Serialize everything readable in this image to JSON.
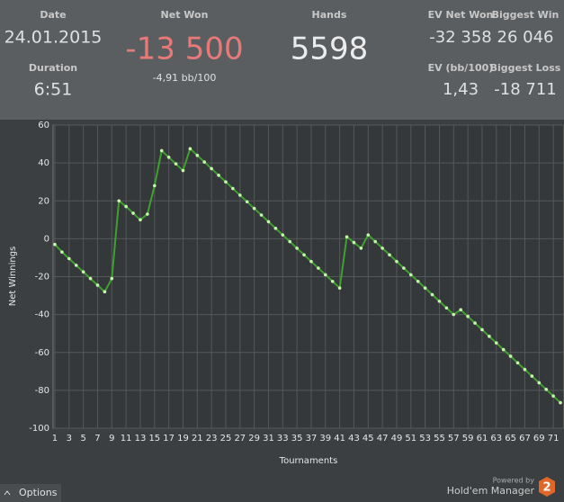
{
  "header": {
    "date_label": "Date",
    "date": "24.01.2015",
    "duration_label": "Duration",
    "duration": "6:51",
    "net_won_label": "Net Won",
    "net_won": "-13 500",
    "bb_per_100": "-4,91 bb/100",
    "hands_label": "Hands",
    "hands": "5598",
    "ev_net_won_label": "EV Net Won",
    "ev_net_won": "-32 358",
    "ev_bb_label": "EV (bb/100)",
    "ev_bb": "1,43",
    "biggest_win_label": "Biggest Win",
    "biggest_win": "26 046",
    "biggest_loss_label": "Biggest Loss",
    "biggest_loss": "-18 711"
  },
  "chart_data": {
    "type": "line",
    "x_label": "Tournaments",
    "y_label": "Net Winnings",
    "x": [
      1,
      2,
      3,
      4,
      5,
      6,
      7,
      8,
      9,
      10,
      11,
      12,
      13,
      14,
      15,
      16,
      17,
      18,
      19,
      20,
      21,
      22,
      23,
      24,
      25,
      26,
      27,
      28,
      29,
      30,
      31,
      32,
      33,
      34,
      35,
      36,
      37,
      38,
      39,
      40,
      41,
      42,
      43,
      44,
      45,
      46,
      47,
      48,
      49,
      50,
      51,
      52,
      53,
      54,
      55,
      56,
      57,
      58,
      59,
      60,
      61,
      62,
      63,
      64,
      65,
      66,
      67,
      68,
      69,
      70,
      71,
      72
    ],
    "series": [
      {
        "name": "Net Winnings",
        "color": "#3fa02f",
        "values": [
          -3,
          -7,
          -10.5,
          -14,
          -17.5,
          -21,
          -24.5,
          -28,
          -21,
          20,
          17,
          13.5,
          10,
          13,
          28,
          46.5,
          43,
          39.5,
          36,
          47.5,
          44,
          40.5,
          37,
          33.5,
          30,
          26.5,
          23,
          19.5,
          16,
          12.5,
          9,
          5.5,
          2,
          -1.5,
          -5,
          -8.5,
          -12,
          -15.5,
          -19,
          -22.5,
          -26,
          1,
          -2,
          -5,
          2,
          -1.5,
          -5,
          -8.5,
          -12,
          -15.5,
          -19,
          -22.5,
          -26,
          -29.5,
          -33,
          -36.5,
          -40,
          -37.5,
          -41,
          -44.5,
          -48,
          -51.5,
          -55,
          -58.5,
          -62,
          -65.5,
          -69,
          -72.5,
          -76,
          -79.5,
          -83,
          -86.5
        ]
      }
    ],
    "xlim": [
      0.75,
      72.5
    ],
    "xticks": [
      1,
      3,
      5,
      7,
      9,
      11,
      13,
      15,
      17,
      19,
      21,
      23,
      25,
      27,
      29,
      31,
      33,
      35,
      37,
      39,
      41,
      43,
      45,
      47,
      49,
      51,
      53,
      55,
      57,
      59,
      61,
      63,
      65,
      67,
      69,
      71
    ],
    "ylim": [
      -100,
      60
    ],
    "yticks": [
      -100,
      -80,
      -60,
      -40,
      -20,
      0,
      20,
      40,
      60
    ],
    "grid": true
  },
  "footer": {
    "options": "Options",
    "powered_by": "Powered by",
    "brand": "Hold'em Manager",
    "brand_number": "2"
  }
}
